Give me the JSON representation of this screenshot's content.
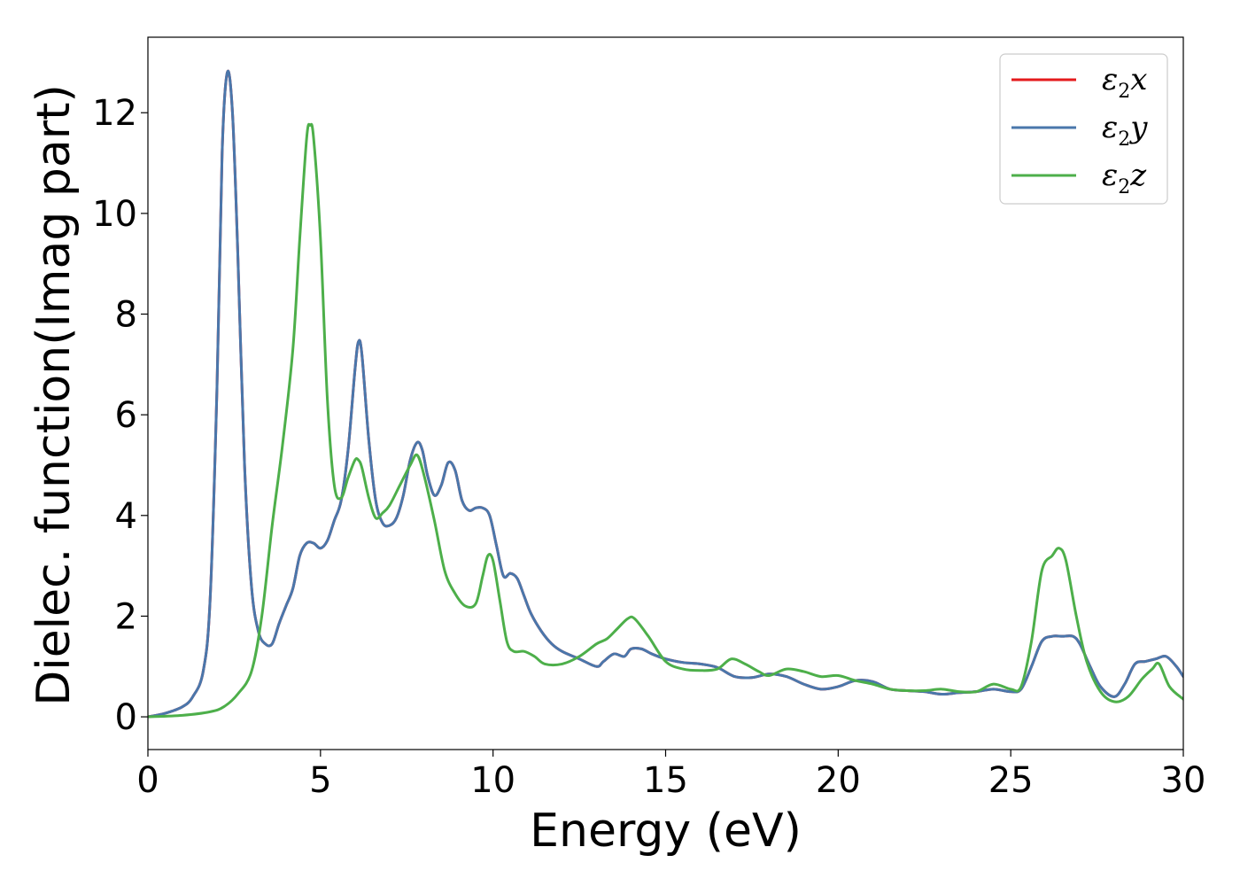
{
  "chart_data": {
    "type": "line",
    "xlabel": "Energy (eV)",
    "ylabel": "Dielec. function(Imag part)",
    "xlim": [
      0,
      30
    ],
    "ylim": [
      -0.65,
      13.5
    ],
    "xticks": [
      0,
      5,
      10,
      15,
      20,
      25,
      30
    ],
    "yticks": [
      0,
      2,
      4,
      6,
      8,
      10,
      12
    ],
    "grid": false,
    "legend_position": "top-right",
    "series": [
      {
        "name": "ε2x",
        "legend": {
          "base": "ε",
          "sub": "2",
          "tail": "x"
        },
        "color": "#e41a1c",
        "x": [
          0,
          0.5,
          1.0,
          1.3,
          1.6,
          1.8,
          2.0,
          2.15,
          2.3,
          2.45,
          2.6,
          2.8,
          3.0,
          3.2,
          3.4,
          3.6,
          3.8,
          4.0,
          4.2,
          4.4,
          4.6,
          4.8,
          5.0,
          5.2,
          5.4,
          5.6,
          5.8,
          6.0,
          6.1,
          6.2,
          6.4,
          6.6,
          6.8,
          7.0,
          7.2,
          7.4,
          7.6,
          7.8,
          7.95,
          8.1,
          8.3,
          8.5,
          8.7,
          8.9,
          9.1,
          9.3,
          9.5,
          9.7,
          9.9,
          10.1,
          10.3,
          10.5,
          10.7,
          10.9,
          11.1,
          11.4,
          11.7,
          12.0,
          12.5,
          13.0,
          13.2,
          13.5,
          13.8,
          14.0,
          14.3,
          14.6,
          15.0,
          15.5,
          16.0,
          16.5,
          17.0,
          17.5,
          18.0,
          18.5,
          19.0,
          19.5,
          20.0,
          20.5,
          21.0,
          21.5,
          22.0,
          22.5,
          23.0,
          23.5,
          24.0,
          24.5,
          25.0,
          25.3,
          25.6,
          25.9,
          26.2,
          26.5,
          26.8,
          27.0,
          27.3,
          27.6,
          28.0,
          28.3,
          28.6,
          28.9,
          29.2,
          29.5,
          29.8,
          30.0
        ],
        "y": [
          0.0,
          0.07,
          0.2,
          0.4,
          0.9,
          2.3,
          6.5,
          11.2,
          12.8,
          12.0,
          9.3,
          5.0,
          2.6,
          1.7,
          1.45,
          1.45,
          1.85,
          2.2,
          2.55,
          3.2,
          3.45,
          3.45,
          3.35,
          3.5,
          3.9,
          4.3,
          5.3,
          6.9,
          7.45,
          7.2,
          5.5,
          4.3,
          3.85,
          3.8,
          3.95,
          4.4,
          5.1,
          5.45,
          5.3,
          4.8,
          4.4,
          4.6,
          5.05,
          4.9,
          4.3,
          4.1,
          4.15,
          4.15,
          4.0,
          3.4,
          2.8,
          2.85,
          2.75,
          2.4,
          2.05,
          1.7,
          1.45,
          1.3,
          1.15,
          1.0,
          1.1,
          1.25,
          1.2,
          1.35,
          1.35,
          1.25,
          1.15,
          1.08,
          1.05,
          0.98,
          0.8,
          0.78,
          0.85,
          0.8,
          0.65,
          0.55,
          0.6,
          0.72,
          0.7,
          0.55,
          0.52,
          0.5,
          0.45,
          0.48,
          0.5,
          0.55,
          0.5,
          0.55,
          1.0,
          1.5,
          1.6,
          1.6,
          1.6,
          1.45,
          1.0,
          0.6,
          0.4,
          0.65,
          1.05,
          1.1,
          1.15,
          1.2,
          1.0,
          0.8
        ]
      },
      {
        "name": "ε2y",
        "legend": {
          "base": "ε",
          "sub": "2",
          "tail": "y"
        },
        "color": "#4a77ab",
        "x": [
          0,
          0.5,
          1.0,
          1.3,
          1.6,
          1.8,
          2.0,
          2.15,
          2.3,
          2.45,
          2.6,
          2.8,
          3.0,
          3.2,
          3.4,
          3.6,
          3.8,
          4.0,
          4.2,
          4.4,
          4.6,
          4.8,
          5.0,
          5.2,
          5.4,
          5.6,
          5.8,
          6.0,
          6.1,
          6.2,
          6.4,
          6.6,
          6.8,
          7.0,
          7.2,
          7.4,
          7.6,
          7.8,
          7.95,
          8.1,
          8.3,
          8.5,
          8.7,
          8.9,
          9.1,
          9.3,
          9.5,
          9.7,
          9.9,
          10.1,
          10.3,
          10.5,
          10.7,
          10.9,
          11.1,
          11.4,
          11.7,
          12.0,
          12.5,
          13.0,
          13.2,
          13.5,
          13.8,
          14.0,
          14.3,
          14.6,
          15.0,
          15.5,
          16.0,
          16.5,
          17.0,
          17.5,
          18.0,
          18.5,
          19.0,
          19.5,
          20.0,
          20.5,
          21.0,
          21.5,
          22.0,
          22.5,
          23.0,
          23.5,
          24.0,
          24.5,
          25.0,
          25.3,
          25.6,
          25.9,
          26.2,
          26.5,
          26.8,
          27.0,
          27.3,
          27.6,
          28.0,
          28.3,
          28.6,
          28.9,
          29.2,
          29.5,
          29.8,
          30.0
        ],
        "y": [
          0.0,
          0.07,
          0.2,
          0.4,
          0.9,
          2.3,
          6.5,
          11.2,
          12.8,
          12.0,
          9.3,
          5.0,
          2.6,
          1.7,
          1.45,
          1.45,
          1.85,
          2.2,
          2.55,
          3.2,
          3.45,
          3.45,
          3.35,
          3.5,
          3.9,
          4.3,
          5.3,
          6.9,
          7.45,
          7.2,
          5.5,
          4.3,
          3.85,
          3.8,
          3.95,
          4.4,
          5.1,
          5.45,
          5.3,
          4.8,
          4.4,
          4.6,
          5.05,
          4.9,
          4.3,
          4.1,
          4.15,
          4.15,
          4.0,
          3.4,
          2.8,
          2.85,
          2.75,
          2.4,
          2.05,
          1.7,
          1.45,
          1.3,
          1.15,
          1.0,
          1.1,
          1.25,
          1.2,
          1.35,
          1.35,
          1.25,
          1.15,
          1.08,
          1.05,
          0.98,
          0.8,
          0.78,
          0.85,
          0.8,
          0.65,
          0.55,
          0.6,
          0.72,
          0.7,
          0.55,
          0.52,
          0.5,
          0.45,
          0.48,
          0.5,
          0.55,
          0.5,
          0.55,
          1.0,
          1.5,
          1.6,
          1.6,
          1.6,
          1.45,
          1.0,
          0.6,
          0.4,
          0.65,
          1.05,
          1.1,
          1.15,
          1.2,
          1.0,
          0.8
        ]
      },
      {
        "name": "ε2z",
        "legend": {
          "base": "ε",
          "sub": "2",
          "tail": "z"
        },
        "color": "#4daf4a",
        "x": [
          0,
          1.0,
          1.8,
          2.2,
          2.6,
          3.0,
          3.3,
          3.6,
          3.9,
          4.2,
          4.4,
          4.6,
          4.7,
          4.8,
          5.0,
          5.2,
          5.4,
          5.6,
          5.8,
          6.0,
          6.1,
          6.2,
          6.4,
          6.6,
          6.8,
          7.0,
          7.3,
          7.6,
          7.8,
          8.0,
          8.3,
          8.6,
          8.9,
          9.2,
          9.5,
          9.7,
          9.85,
          10.0,
          10.2,
          10.4,
          10.6,
          10.9,
          11.2,
          11.5,
          12.0,
          12.5,
          13.0,
          13.3,
          13.6,
          13.9,
          14.1,
          14.5,
          15.0,
          15.5,
          16.0,
          16.5,
          16.9,
          17.3,
          17.7,
          18.0,
          18.5,
          19.0,
          19.5,
          20.0,
          20.5,
          21.0,
          21.5,
          22.0,
          22.5,
          23.0,
          23.5,
          24.0,
          24.5,
          25.0,
          25.3,
          25.6,
          25.9,
          26.2,
          26.4,
          26.6,
          26.9,
          27.2,
          27.6,
          28.0,
          28.4,
          28.8,
          29.1,
          29.3,
          29.6,
          30.0
        ],
        "y": [
          0.0,
          0.03,
          0.1,
          0.2,
          0.45,
          0.9,
          2.0,
          3.8,
          5.4,
          7.3,
          9.5,
          11.5,
          11.75,
          11.5,
          9.5,
          6.3,
          4.6,
          4.35,
          4.75,
          5.1,
          5.1,
          4.95,
          4.35,
          3.95,
          4.05,
          4.2,
          4.6,
          5.0,
          5.2,
          4.8,
          3.9,
          2.9,
          2.45,
          2.2,
          2.25,
          2.8,
          3.2,
          3.1,
          2.3,
          1.5,
          1.3,
          1.3,
          1.2,
          1.05,
          1.05,
          1.2,
          1.45,
          1.55,
          1.75,
          1.95,
          1.95,
          1.6,
          1.1,
          0.95,
          0.92,
          0.95,
          1.15,
          1.05,
          0.9,
          0.82,
          0.95,
          0.9,
          0.8,
          0.82,
          0.72,
          0.65,
          0.55,
          0.52,
          0.52,
          0.55,
          0.5,
          0.5,
          0.65,
          0.55,
          0.6,
          1.5,
          2.9,
          3.2,
          3.35,
          3.1,
          2.0,
          1.1,
          0.5,
          0.3,
          0.4,
          0.75,
          0.95,
          1.05,
          0.6,
          0.35
        ]
      }
    ]
  }
}
